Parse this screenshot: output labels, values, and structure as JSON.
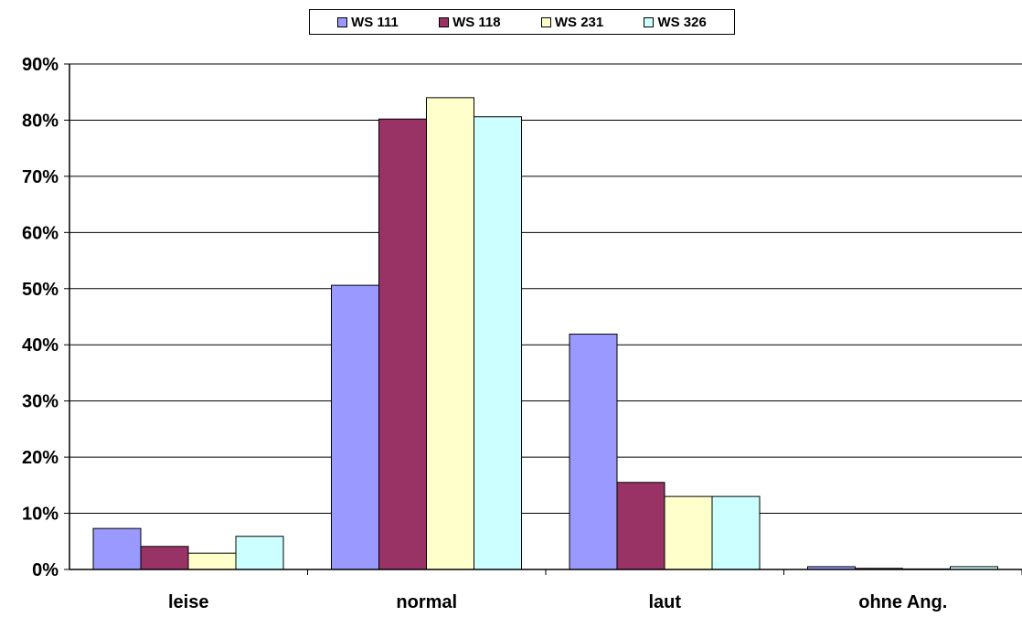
{
  "chart_data": {
    "type": "bar",
    "categories": [
      "leise",
      "normal",
      "laut",
      "ohne Ang."
    ],
    "series": [
      {
        "name": "WS 111",
        "color": "#9999ff",
        "values": [
          7.3,
          50.6,
          41.9,
          0.5
        ]
      },
      {
        "name": "WS 118",
        "color": "#993366",
        "values": [
          4.1,
          80.2,
          15.5,
          0.2
        ]
      },
      {
        "name": "WS 231",
        "color": "#ffffcc",
        "values": [
          2.9,
          84.0,
          13.0,
          0.1
        ]
      },
      {
        "name": "WS 326",
        "color": "#ccffff",
        "values": [
          5.9,
          80.6,
          13.0,
          0.5
        ]
      }
    ],
    "ylim": [
      0,
      90
    ],
    "yticks": [
      0,
      10,
      20,
      30,
      40,
      50,
      60,
      70,
      80,
      90
    ],
    "ytick_labels": [
      "0%",
      "10%",
      "20%",
      "30%",
      "40%",
      "50%",
      "60%",
      "70%",
      "80%",
      "90%"
    ],
    "grid": true,
    "legend_position": "top-center"
  }
}
